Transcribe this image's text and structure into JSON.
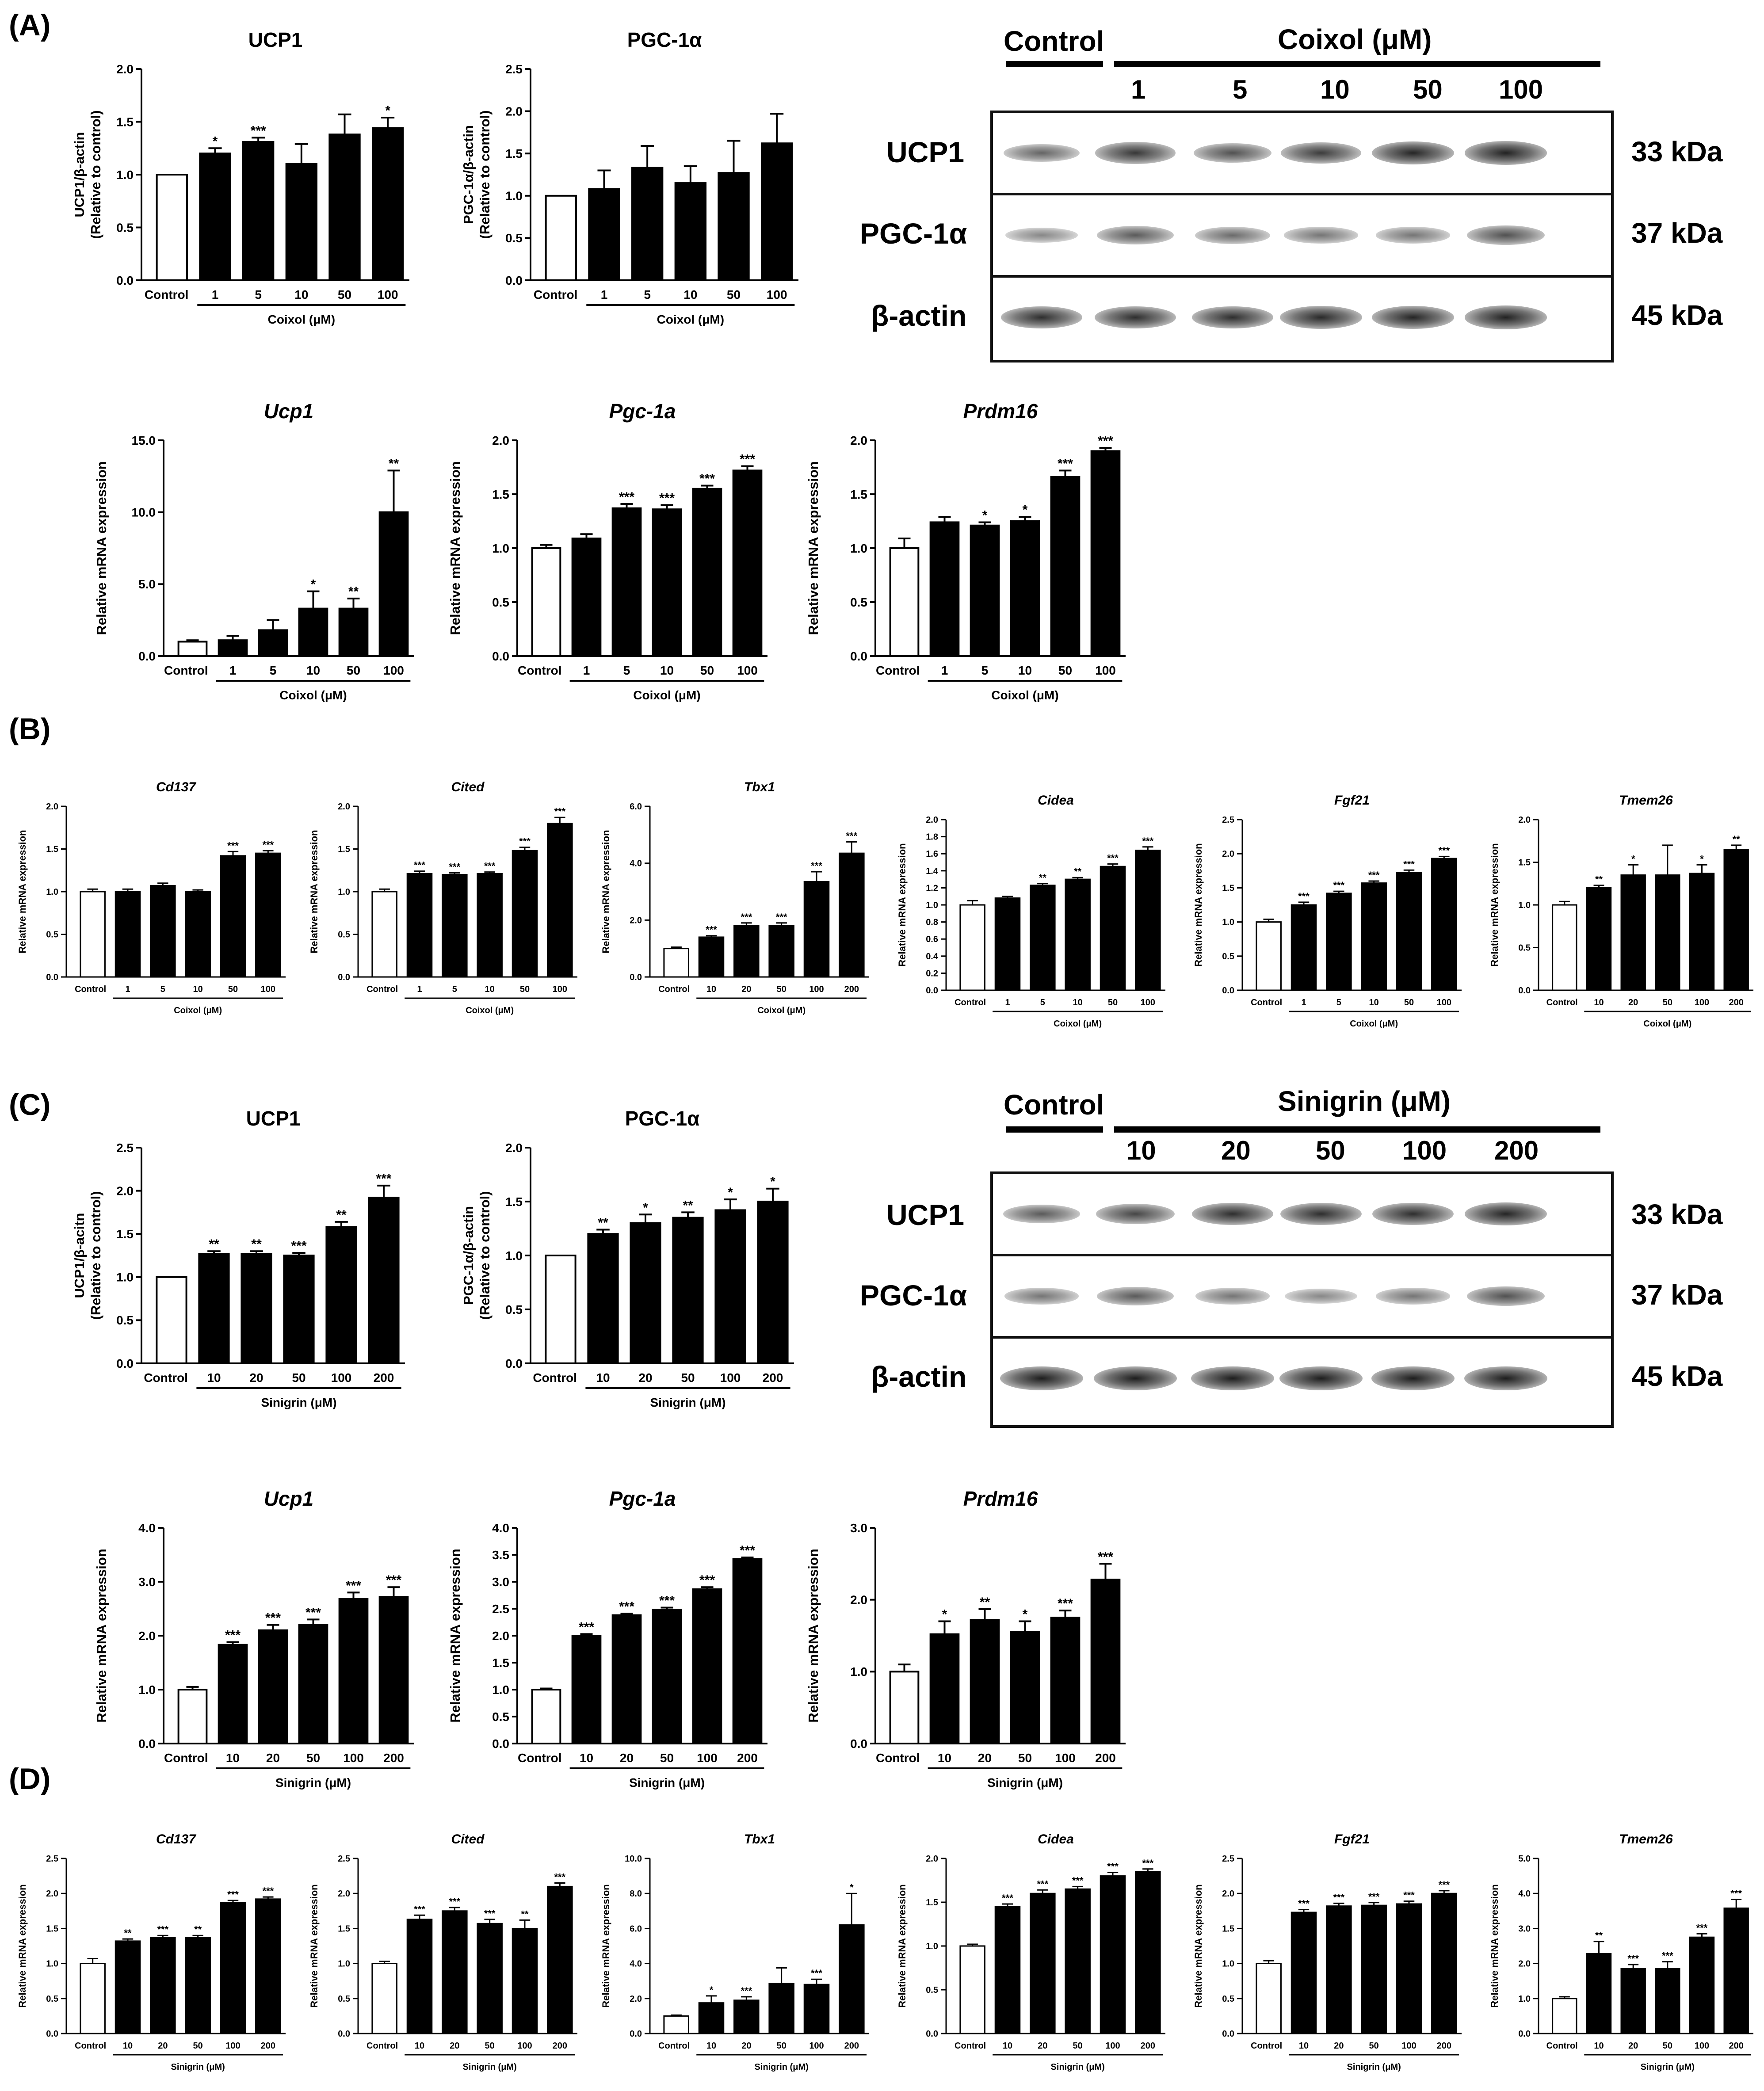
{
  "panels": {
    "A": "(A)",
    "B": "(B)",
    "C": "(C)",
    "D": "(D)"
  },
  "chart_data": [
    {
      "id": "A-ucp1-protein",
      "type": "bar",
      "title": "UCP1",
      "title_style": "bold",
      "ylabel": [
        "UCP1/β-actin",
        "(Relative to control)"
      ],
      "ylim": [
        0,
        2.0
      ],
      "yticks": [
        "0.0",
        "0.5",
        "1.0",
        "1.5",
        "2.0"
      ],
      "categories": [
        "Control",
        "1",
        "5",
        "10",
        "50",
        "100"
      ],
      "values": [
        1.0,
        1.2,
        1.31,
        1.1,
        1.38,
        1.44
      ],
      "errors": [
        0,
        0.05,
        0.04,
        0.19,
        0.19,
        0.1
      ],
      "sig": [
        "",
        "*",
        "***",
        "",
        "",
        "*"
      ],
      "xlabel": "Coixol (μM)"
    },
    {
      "id": "A-pgc1a-protein",
      "type": "bar",
      "title": "PGC-1α",
      "title_style": "bold",
      "ylabel": [
        "PGC-1α/β-actin",
        "(Relative to control)"
      ],
      "ylim": [
        0,
        2.5
      ],
      "yticks": [
        "0.0",
        "0.5",
        "1.0",
        "1.5",
        "2.0",
        "2.5"
      ],
      "categories": [
        "Control",
        "1",
        "5",
        "10",
        "50",
        "100"
      ],
      "values": [
        1.0,
        1.08,
        1.33,
        1.15,
        1.27,
        1.62
      ],
      "errors": [
        0,
        0.22,
        0.26,
        0.2,
        0.38,
        0.35
      ],
      "sig": [
        "",
        "",
        "",
        "",
        "",
        ""
      ],
      "xlabel": "Coixol (μM)"
    },
    {
      "id": "A-ucp1-mrna",
      "type": "bar",
      "title": "Ucp1",
      "title_style": "bolditalic",
      "ylabel": [
        "Relative mRNA expression"
      ],
      "ylim": [
        0,
        15.0
      ],
      "yticks": [
        "0.0",
        "5.0",
        "10.0",
        "15.0"
      ],
      "categories": [
        "Control",
        "1",
        "5",
        "10",
        "50",
        "100"
      ],
      "values": [
        1.0,
        1.1,
        1.8,
        3.3,
        3.3,
        10.0
      ],
      "errors": [
        0.1,
        0.3,
        0.7,
        1.2,
        0.7,
        2.9
      ],
      "sig": [
        "",
        "",
        "",
        "*",
        "**",
        "**"
      ],
      "xlabel": "Coixol (μM)"
    },
    {
      "id": "A-pgc1a-mrna",
      "type": "bar",
      "title": "Pgc-1a",
      "title_style": "bolditalic",
      "ylabel": [
        "Relative mRNA expression"
      ],
      "ylim": [
        0,
        2.0
      ],
      "yticks": [
        "0.0",
        "0.5",
        "1.0",
        "1.5",
        "2.0"
      ],
      "categories": [
        "Control",
        "1",
        "5",
        "10",
        "50",
        "100"
      ],
      "values": [
        1.0,
        1.09,
        1.37,
        1.36,
        1.55,
        1.72
      ],
      "errors": [
        0.03,
        0.04,
        0.04,
        0.04,
        0.03,
        0.04
      ],
      "sig": [
        "",
        "",
        "***",
        "***",
        "***",
        "***"
      ],
      "xlabel": "Coixol (μM)"
    },
    {
      "id": "A-prdm16-mrna",
      "type": "bar",
      "title": "Prdm16",
      "title_style": "bolditalic",
      "ylabel": [
        "Relative mRNA expression"
      ],
      "ylim": [
        0,
        2.0
      ],
      "yticks": [
        "0.0",
        "0.5",
        "1.0",
        "1.5",
        "2.0"
      ],
      "categories": [
        "Control",
        "1",
        "5",
        "10",
        "50",
        "100"
      ],
      "values": [
        1.0,
        1.24,
        1.21,
        1.25,
        1.66,
        1.9
      ],
      "errors": [
        0.09,
        0.05,
        0.03,
        0.04,
        0.06,
        0.03
      ],
      "sig": [
        "",
        "",
        "*",
        "*",
        "***",
        "***"
      ],
      "xlabel": "Coixol (μM)"
    },
    {
      "id": "B-cd137",
      "type": "bar",
      "title": "Cd137",
      "title_style": "bolditalic",
      "ylabel": [
        "Relative mRNA expression"
      ],
      "ylim": [
        0,
        2.0
      ],
      "yticks": [
        "0.0",
        "0.5",
        "1.0",
        "1.5",
        "2.0"
      ],
      "categories": [
        "Control",
        "1",
        "5",
        "10",
        "50",
        "100"
      ],
      "values": [
        1.0,
        1.0,
        1.07,
        1.0,
        1.42,
        1.45
      ],
      "errors": [
        0.03,
        0.03,
        0.03,
        0.02,
        0.05,
        0.03
      ],
      "sig": [
        "",
        "",
        "",
        "",
        "***",
        "***"
      ],
      "xlabel": "Coixol (μM)"
    },
    {
      "id": "B-cited",
      "type": "bar",
      "title": "Cited",
      "title_style": "bolditalic",
      "ylabel": [
        "Relative mRNA expression"
      ],
      "ylim": [
        0,
        2.0
      ],
      "yticks": [
        "0.0",
        "0.5",
        "1.0",
        "1.5",
        "2.0"
      ],
      "categories": [
        "Control",
        "1",
        "5",
        "10",
        "50",
        "100"
      ],
      "values": [
        1.0,
        1.21,
        1.2,
        1.21,
        1.48,
        1.8
      ],
      "errors": [
        0.03,
        0.03,
        0.02,
        0.02,
        0.04,
        0.07
      ],
      "sig": [
        "",
        "***",
        "***",
        "***",
        "***",
        "***"
      ],
      "xlabel": "Coixol (μM)"
    },
    {
      "id": "B-tbx1",
      "type": "bar",
      "title": "Tbx1",
      "title_style": "bolditalic",
      "ylabel": [
        "Relative mRNA expression"
      ],
      "ylim": [
        0,
        6.0
      ],
      "yticks": [
        "0.0",
        "2.0",
        "4.0",
        "6.0"
      ],
      "categories": [
        "Control",
        "10",
        "20",
        "50",
        "100",
        "200"
      ],
      "values": [
        1.0,
        1.4,
        1.8,
        1.8,
        3.35,
        4.35
      ],
      "errors": [
        0.05,
        0.05,
        0.1,
        0.1,
        0.35,
        0.4
      ],
      "sig": [
        "",
        "***",
        "***",
        "***",
        "***",
        "***"
      ],
      "xlabel": "Coixol (μM)"
    },
    {
      "id": "B-cidea",
      "type": "bar",
      "title": "Cidea",
      "title_style": "bolditalic",
      "ylabel": [
        "Relative mRNA expression"
      ],
      "ylim": [
        0,
        2.0
      ],
      "yticks": [
        "0.0",
        "0.2",
        "0.4",
        "0.6",
        "0.8",
        "1.0",
        "1.2",
        "1.4",
        "1.6",
        "1.8",
        "2.0"
      ],
      "categories": [
        "Control",
        "1",
        "5",
        "10",
        "50",
        "100"
      ],
      "values": [
        1.0,
        1.08,
        1.23,
        1.3,
        1.45,
        1.64
      ],
      "errors": [
        0.05,
        0.02,
        0.02,
        0.02,
        0.03,
        0.04
      ],
      "sig": [
        "",
        "",
        "**",
        "**",
        "***",
        "***"
      ],
      "xlabel": "Coixol (μM)"
    },
    {
      "id": "B-fgf21",
      "type": "bar",
      "title": "Fgf21",
      "title_style": "bolditalic",
      "ylabel": [
        "Relative mRNA expression"
      ],
      "ylim": [
        0,
        2.5
      ],
      "yticks": [
        "0.0",
        "0.5",
        "1.0",
        "1.5",
        "2.0",
        "2.5"
      ],
      "categories": [
        "Control",
        "1",
        "5",
        "10",
        "50",
        "100"
      ],
      "values": [
        1.0,
        1.25,
        1.42,
        1.57,
        1.72,
        1.93
      ],
      "errors": [
        0.04,
        0.04,
        0.03,
        0.03,
        0.04,
        0.03
      ],
      "sig": [
        "",
        "***",
        "***",
        "***",
        "***",
        "***"
      ],
      "xlabel": "Coixol (μM)"
    },
    {
      "id": "B-tmem26",
      "type": "bar",
      "title": "Tmem26",
      "title_style": "bolditalic",
      "ylabel": [
        "Relative mRNA expression"
      ],
      "ylim": [
        0,
        2.0
      ],
      "yticks": [
        "0.0",
        "0.5",
        "1.0",
        "1.5",
        "2.0"
      ],
      "categories": [
        "Control",
        "10",
        "20",
        "50",
        "100",
        "200"
      ],
      "values": [
        1.0,
        1.2,
        1.35,
        1.35,
        1.37,
        1.65
      ],
      "errors": [
        0.04,
        0.03,
        0.12,
        0.35,
        0.1,
        0.05
      ],
      "sig": [
        "",
        "**",
        "*",
        "",
        "*",
        "**"
      ],
      "xlabel": "Coixol (μM)"
    },
    {
      "id": "C-ucp1-protein",
      "type": "bar",
      "title": "UCP1",
      "title_style": "bold",
      "ylabel": [
        "UCP1/β-acitn",
        "(Relative to control)"
      ],
      "ylim": [
        0,
        2.5
      ],
      "yticks": [
        "0.0",
        "0.5",
        "1.0",
        "1.5",
        "2.0",
        "2.5"
      ],
      "categories": [
        "Control",
        "10",
        "20",
        "50",
        "100",
        "200"
      ],
      "values": [
        1.0,
        1.27,
        1.27,
        1.25,
        1.58,
        1.92
      ],
      "errors": [
        0,
        0.03,
        0.03,
        0.03,
        0.06,
        0.14
      ],
      "sig": [
        "",
        "**",
        "**",
        "***",
        "**",
        "***"
      ],
      "xlabel": "Sinigrin (μM)"
    },
    {
      "id": "C-pgc1a-protein",
      "type": "bar",
      "title": "PGC-1α",
      "title_style": "bold",
      "ylabel": [
        "PGC-1α/β-actin",
        "(Relative to control)"
      ],
      "ylim": [
        0,
        2.0
      ],
      "yticks": [
        "0.0",
        "0.5",
        "1.0",
        "1.5",
        "2.0"
      ],
      "categories": [
        "Control",
        "10",
        "20",
        "50",
        "100",
        "200"
      ],
      "values": [
        1.0,
        1.2,
        1.3,
        1.35,
        1.42,
        1.5
      ],
      "errors": [
        0,
        0.04,
        0.08,
        0.05,
        0.1,
        0.12
      ],
      "sig": [
        "",
        "**",
        "*",
        "**",
        "*",
        "*"
      ],
      "xlabel": "Sinigrin (μM)"
    },
    {
      "id": "C-ucp1-mrna",
      "type": "bar",
      "title": "Ucp1",
      "title_style": "bolditalic",
      "ylabel": [
        "Relative mRNA expression"
      ],
      "ylim": [
        0,
        4.0
      ],
      "yticks": [
        "0.0",
        "1.0",
        "2.0",
        "3.0",
        "4.0"
      ],
      "categories": [
        "Control",
        "10",
        "20",
        "50",
        "100",
        "200"
      ],
      "values": [
        1.0,
        1.83,
        2.1,
        2.2,
        2.68,
        2.72
      ],
      "errors": [
        0.05,
        0.05,
        0.1,
        0.1,
        0.12,
        0.18
      ],
      "sig": [
        "",
        "***",
        "***",
        "***",
        "***",
        "***"
      ],
      "xlabel": "Sinigrin (μM)"
    },
    {
      "id": "C-pgc1a-mrna",
      "type": "bar",
      "title": "Pgc-1a",
      "title_style": "bolditalic",
      "ylabel": [
        "Relative mRNA expression"
      ],
      "ylim": [
        0,
        4.0
      ],
      "yticks": [
        "0.0",
        "0.5",
        "1.0",
        "1.5",
        "2.0",
        "2.5",
        "3.0",
        "3.5",
        "4.0"
      ],
      "categories": [
        "Control",
        "10",
        "20",
        "50",
        "100",
        "200"
      ],
      "values": [
        1.0,
        2.0,
        2.38,
        2.48,
        2.86,
        3.42
      ],
      "errors": [
        0.02,
        0.03,
        0.03,
        0.04,
        0.04,
        0.03
      ],
      "sig": [
        "",
        "***",
        "***",
        "***",
        "***",
        "***"
      ],
      "xlabel": "Sinigrin (μM)"
    },
    {
      "id": "C-prdm16-mrna",
      "type": "bar",
      "title": "Prdm16",
      "title_style": "bolditalic",
      "ylabel": [
        "Relative mRNA expression"
      ],
      "ylim": [
        0,
        3.0
      ],
      "yticks": [
        "0.0",
        "1.0",
        "2.0",
        "3.0"
      ],
      "categories": [
        "Control",
        "10",
        "20",
        "50",
        "100",
        "200"
      ],
      "values": [
        1.0,
        1.52,
        1.72,
        1.55,
        1.75,
        2.28
      ],
      "errors": [
        0.1,
        0.18,
        0.15,
        0.15,
        0.1,
        0.22
      ],
      "sig": [
        "",
        "*",
        "**",
        "*",
        "***",
        "***"
      ],
      "xlabel": "Sinigrin (μM)"
    },
    {
      "id": "D-cd137",
      "type": "bar",
      "title": "Cd137",
      "title_style": "bolditalic",
      "ylabel": [
        "Relative mRNA expression"
      ],
      "ylim": [
        0,
        2.5
      ],
      "yticks": [
        "0.0",
        "0.5",
        "1.0",
        "1.5",
        "2.0",
        "2.5"
      ],
      "categories": [
        "Control",
        "10",
        "20",
        "50",
        "100",
        "200"
      ],
      "values": [
        1.0,
        1.32,
        1.37,
        1.37,
        1.87,
        1.92
      ],
      "errors": [
        0.07,
        0.03,
        0.03,
        0.03,
        0.03,
        0.03
      ],
      "sig": [
        "",
        "**",
        "***",
        "**",
        "***",
        "***"
      ],
      "xlabel": "Sinigrin (μM)"
    },
    {
      "id": "D-cited",
      "type": "bar",
      "title": "Cited",
      "title_style": "bolditalic",
      "ylabel": [
        "Relative mRNA expression"
      ],
      "ylim": [
        0,
        2.5
      ],
      "yticks": [
        "0.0",
        "0.5",
        "1.0",
        "1.5",
        "2.0",
        "2.5"
      ],
      "categories": [
        "Control",
        "10",
        "20",
        "50",
        "100",
        "200"
      ],
      "values": [
        1.0,
        1.63,
        1.75,
        1.57,
        1.5,
        2.1
      ],
      "errors": [
        0.03,
        0.06,
        0.05,
        0.06,
        0.12,
        0.05
      ],
      "sig": [
        "",
        "***",
        "***",
        "***",
        "**",
        "***"
      ],
      "xlabel": "Sinigrin (μM)"
    },
    {
      "id": "D-tbx1",
      "type": "bar",
      "title": "Tbx1",
      "title_style": "bolditalic",
      "ylabel": [
        "Relative mRNA expression"
      ],
      "ylim": [
        0,
        10.0
      ],
      "yticks": [
        "0.0",
        "2.0",
        "4.0",
        "6.0",
        "8.0",
        "10.0"
      ],
      "categories": [
        "Control",
        "10",
        "20",
        "50",
        "100",
        "200"
      ],
      "values": [
        1.0,
        1.75,
        1.9,
        2.85,
        2.8,
        6.2
      ],
      "errors": [
        0.05,
        0.4,
        0.2,
        0.9,
        0.3,
        1.8
      ],
      "sig": [
        "",
        "*",
        "***",
        "",
        "***",
        "*"
      ],
      "xlabel": "Sinigrin (μM)"
    },
    {
      "id": "D-cidea",
      "type": "bar",
      "title": "Cidea",
      "title_style": "bolditalic",
      "ylabel": [
        "Relative mRNA expression"
      ],
      "ylim": [
        0,
        2.0
      ],
      "yticks": [
        "0.0",
        "0.5",
        "1.0",
        "1.5",
        "2.0"
      ],
      "categories": [
        "Control",
        "10",
        "20",
        "50",
        "100",
        "200"
      ],
      "values": [
        1.0,
        1.45,
        1.6,
        1.65,
        1.8,
        1.85
      ],
      "errors": [
        0.02,
        0.03,
        0.04,
        0.03,
        0.04,
        0.03
      ],
      "sig": [
        "",
        "***",
        "***",
        "***",
        "***",
        "***"
      ],
      "xlabel": "Sinigrin (μM)"
    },
    {
      "id": "D-fgf21",
      "type": "bar",
      "title": "Fgf21",
      "title_style": "bolditalic",
      "ylabel": [
        "Relative mRNA expression"
      ],
      "ylim": [
        0,
        2.5
      ],
      "yticks": [
        "0.0",
        "0.5",
        "1.0",
        "1.5",
        "2.0",
        "2.5"
      ],
      "categories": [
        "Control",
        "10",
        "20",
        "50",
        "100",
        "200"
      ],
      "values": [
        1.0,
        1.73,
        1.82,
        1.83,
        1.85,
        2.0
      ],
      "errors": [
        0.04,
        0.04,
        0.04,
        0.04,
        0.04,
        0.04
      ],
      "sig": [
        "",
        "***",
        "***",
        "***",
        "***",
        "***"
      ],
      "xlabel": "Sinigrin (μM)"
    },
    {
      "id": "D-tmem26",
      "type": "bar",
      "title": "Tmem26",
      "title_style": "bolditalic",
      "ylabel": [
        "Relative mRNA expression"
      ],
      "ylim": [
        0,
        5.0
      ],
      "yticks": [
        "0.0",
        "1.0",
        "2.0",
        "3.0",
        "4.0",
        "5.0"
      ],
      "categories": [
        "Control",
        "10",
        "20",
        "50",
        "100",
        "200"
      ],
      "values": [
        1.0,
        2.28,
        1.85,
        1.85,
        2.75,
        3.58
      ],
      "errors": [
        0.05,
        0.35,
        0.12,
        0.2,
        0.1,
        0.25
      ],
      "sig": [
        "",
        "**",
        "***",
        "***",
        "***",
        "***"
      ],
      "xlabel": "Sinigrin (μM)"
    }
  ],
  "blots": [
    {
      "id": "blot-A",
      "control_label": "Control",
      "treatment_label": "Coixol (μM)",
      "lanes": [
        "1",
        "5",
        "10",
        "50",
        "100"
      ],
      "rows": [
        {
          "protein": "UCP1",
          "kda": "33 kDa",
          "intensity": [
            0.55,
            0.8,
            0.65,
            0.78,
            0.9,
            0.92
          ]
        },
        {
          "protein": "PGC-1α",
          "kda": "37 kDa",
          "intensity": [
            0.35,
            0.6,
            0.5,
            0.45,
            0.45,
            0.65
          ]
        },
        {
          "protein": "β-actin",
          "kda": "45 kDa",
          "intensity": [
            0.85,
            0.85,
            0.85,
            0.88,
            0.9,
            0.92
          ]
        }
      ]
    },
    {
      "id": "blot-C",
      "control_label": "Control",
      "treatment_label": "Sinigrin (μM)",
      "lanes": [
        "10",
        "20",
        "50",
        "100",
        "200"
      ],
      "rows": [
        {
          "protein": "UCP1",
          "kda": "33 kDa",
          "intensity": [
            0.6,
            0.72,
            0.85,
            0.85,
            0.85,
            0.9
          ]
        },
        {
          "protein": "PGC-1α",
          "kda": "37 kDa",
          "intensity": [
            0.45,
            0.6,
            0.45,
            0.35,
            0.45,
            0.65
          ]
        },
        {
          "protein": "β-actin",
          "kda": "45 kDa",
          "intensity": [
            0.95,
            0.95,
            0.95,
            0.95,
            0.95,
            0.95
          ]
        }
      ]
    }
  ]
}
